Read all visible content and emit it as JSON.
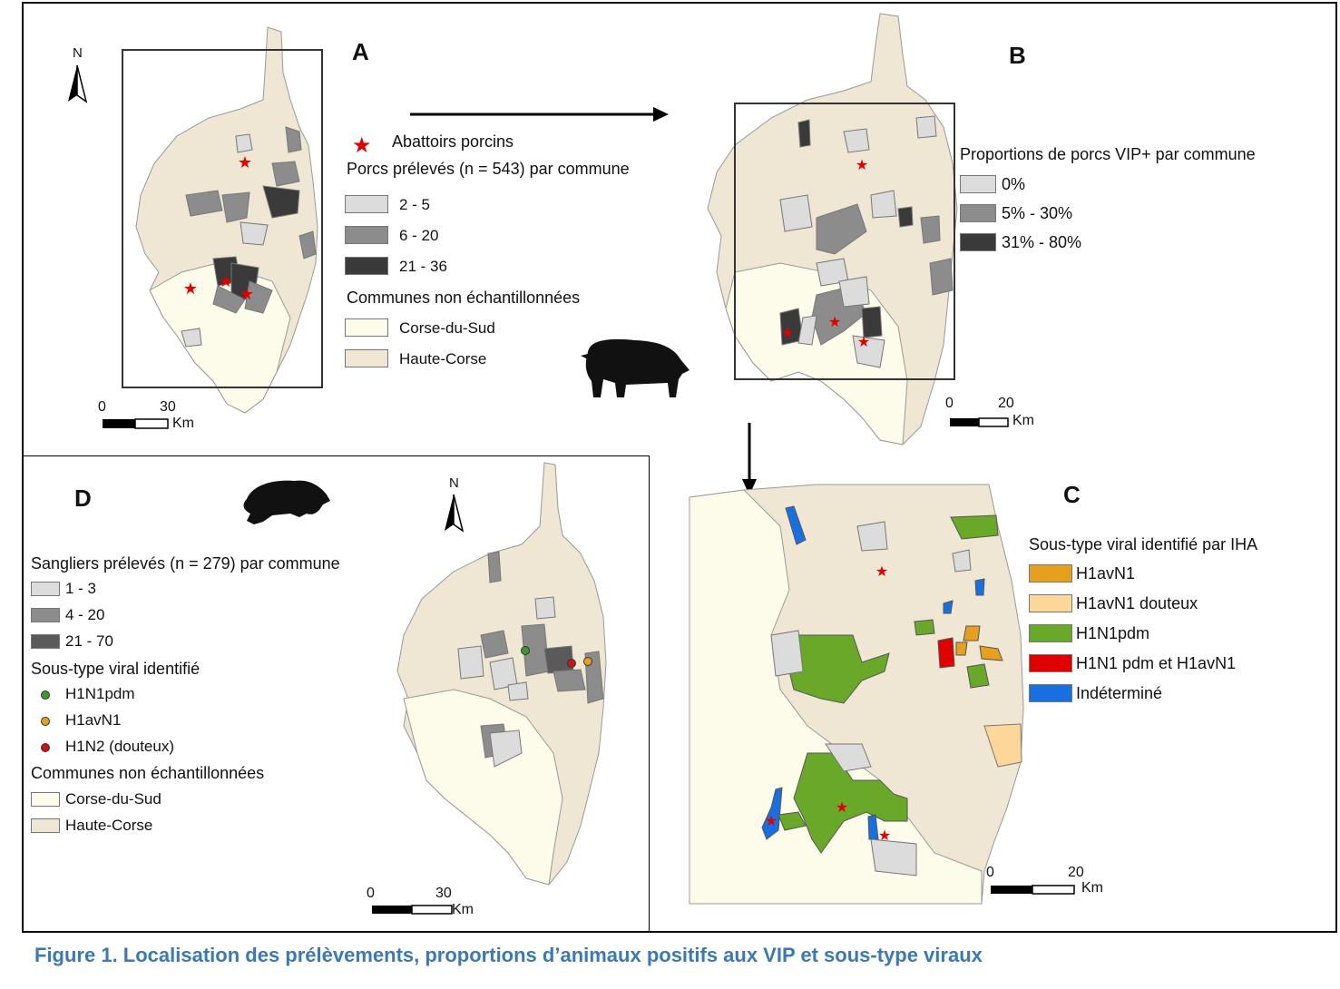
{
  "panels": {
    "A": {
      "letter": "A",
      "north": "N",
      "legend": {
        "abattoir": "Abattoirs porcins",
        "title": "Porcs prélevés (n = 543) par commune",
        "classes": [
          {
            "label": "2 - 5",
            "color": "#dcdcdc"
          },
          {
            "label": "6 - 20",
            "color": "#8c8c8c"
          },
          {
            "label": "21 - 36",
            "color": "#3a3a3a"
          }
        ],
        "unsampled_title": "Communes non échantillonnées",
        "regions": [
          {
            "label": "Corse-du-Sud",
            "color": "#fdfbe9"
          },
          {
            "label": "Haute-Corse",
            "color": "#efe6d4"
          }
        ]
      },
      "scale": {
        "start": "0",
        "end": "30",
        "unit": "Km"
      }
    },
    "B": {
      "letter": "B",
      "legend": {
        "title": "Proportions de porcs VIP+  par commune",
        "classes": [
          {
            "label": "0%",
            "color": "#dcdcdc"
          },
          {
            "label": "5% - 30%",
            "color": "#8c8c8c"
          },
          {
            "label": "31% - 80%",
            "color": "#3a3a3a"
          }
        ]
      },
      "scale": {
        "start": "0",
        "end": "20",
        "unit": "Km"
      }
    },
    "C": {
      "letter": "C",
      "legend": {
        "title": "Sous-type viral identifié par IHA",
        "classes": [
          {
            "label": "H1avN1",
            "color": "#e69f1e"
          },
          {
            "label": "H1avN1 douteux",
            "color": "#fdd699"
          },
          {
            "label": "H1N1pdm",
            "color": "#6aa82a"
          },
          {
            "label": "H1N1 pdm et H1avN1",
            "color": "#e00000"
          },
          {
            "label": "Indéterminé",
            "color": "#1a6fe0"
          }
        ]
      },
      "scale": {
        "start": "0",
        "end": "20",
        "unit": "Km"
      }
    },
    "D": {
      "letter": "D",
      "north": "N",
      "legend": {
        "title": "Sangliers prélevés (n = 279) par commune",
        "classes": [
          {
            "label": "1 - 3",
            "color": "#dcdcdc"
          },
          {
            "label": "4 - 20",
            "color": "#8c8c8c"
          },
          {
            "label": "21 - 70",
            "color": "#5a5a5a"
          }
        ],
        "subtype_title": "Sous-type viral identifié",
        "subtypes": [
          {
            "label": "H1N1pdm",
            "color": "#3f9a2d"
          },
          {
            "label": "H1avN1",
            "color": "#e69f1e"
          },
          {
            "label": "H1N2 (douteux)",
            "color": "#c01818"
          }
        ],
        "unsampled_title": "Communes non échantillonnées",
        "regions": [
          {
            "label": "Corse-du-Sud",
            "color": "#fdfbe9"
          },
          {
            "label": "Haute-Corse",
            "color": "#efe6d4"
          }
        ]
      },
      "scale": {
        "start": "0",
        "end": "30",
        "unit": "Km"
      }
    }
  },
  "caption": "Figure 1. Localisation des prélèvements, proportions d’animaux positifs aux VIP et sous-type viraux"
}
